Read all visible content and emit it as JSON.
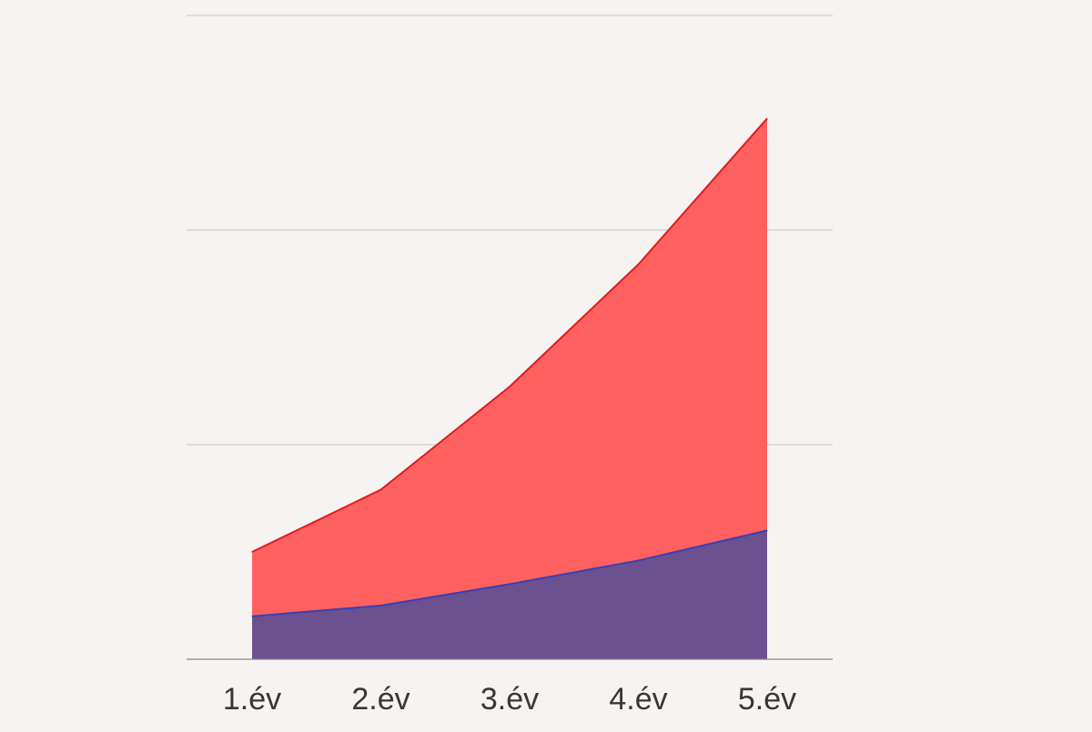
{
  "background_color": "#f7f3f2",
  "chart_data": {
    "type": "area",
    "stacked": false,
    "x": [
      "1.év",
      "2.év",
      "3.év",
      "4.év",
      "5.év"
    ],
    "series": [
      {
        "values": [
          50,
          79,
          127,
          184,
          252
        ],
        "fill_color": "#ff6161",
        "line_color": "#e11d1d"
      },
      {
        "values": [
          20,
          25,
          35,
          46,
          60
        ],
        "fill_color": "#6b5190",
        "line_color": "#3b3fb5"
      }
    ],
    "ylim": [
      0,
      300
    ],
    "y_gridlines": [
      100,
      200,
      300
    ],
    "y_tick_labels_visible": false,
    "grid": true,
    "title": "",
    "xlabel": "",
    "ylabel": ""
  }
}
